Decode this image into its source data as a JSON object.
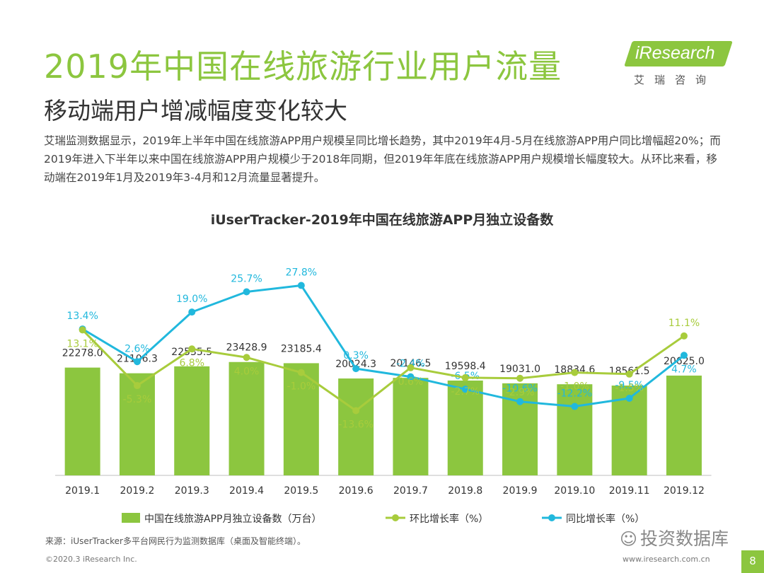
{
  "header": {
    "title": "2019年中国在线旅游行业用户流量",
    "subtitle": "移动端用户增减幅度变化较大"
  },
  "logo": {
    "text": "iResearch",
    "cn": "艾瑞咨询"
  },
  "description": "艾瑞监测数据显示，2019年上半年中国在线旅游APP用户规模呈同比增长趋势，其中2019年4月-5月在线旅游APP用户同比增幅超20%；而2019年进入下半年以来中国在线旅游APP用户规模少于2018年同期，但2019年年底在线旅游APP用户规模增长幅度较大。从环比来看，移动端在2019年1月及2019年3-4月和12月流量显著提升。",
  "chart_data": {
    "type": "bar",
    "title": "iUserTracker-2019年中国在线旅游APP月独立设备数",
    "categories": [
      "2019.1",
      "2019.2",
      "2019.3",
      "2019.4",
      "2019.5",
      "2019.6",
      "2019.7",
      "2019.8",
      "2019.9",
      "2019.10",
      "2019.11",
      "2019.12"
    ],
    "bar_labels": [
      "22278.0",
      "21106.3",
      "22535.5",
      "23428.9",
      "23185.4",
      "20024.3",
      "20146.5",
      "19598.4",
      "19031.0",
      "18834.6",
      "18561.5",
      "20625.0"
    ],
    "mom_labels": [
      "13.1%",
      "-5.3%",
      "6.8%",
      "4.0%",
      "-1.0%",
      "-13.6%",
      "0.6%",
      "-2.7%",
      "-2.9%",
      "-1.0%",
      "-1.5%",
      "11.1%"
    ],
    "yoy_labels": [
      "13.4%",
      "2.6%",
      "19.0%",
      "25.7%",
      "27.8%",
      "0.3%",
      "-2.4%",
      "-6.5%",
      "-10.6%",
      "-12.2%",
      "-9.5%",
      "4.7%"
    ],
    "series": [
      {
        "name": "中国在线旅游APP月独立设备数（万台）",
        "type": "bar",
        "color": "#8cc63f",
        "values": [
          22278.0,
          21106.3,
          22535.5,
          23428.9,
          23185.4,
          20024.3,
          20146.5,
          19598.4,
          19031.0,
          18834.6,
          18561.5,
          20625.0
        ]
      },
      {
        "name": "环比增长率（%）",
        "type": "line",
        "color": "#a8cc3c",
        "values": [
          13.1,
          -5.3,
          6.8,
          4.0,
          -1.0,
          -13.6,
          0.6,
          -2.7,
          -2.9,
          -1.0,
          -1.5,
          11.1
        ]
      },
      {
        "name": "同比增长率（%）",
        "type": "line",
        "color": "#21b8dd",
        "values": [
          13.4,
          2.6,
          19.0,
          25.7,
          27.8,
          0.3,
          -2.4,
          -6.5,
          -10.6,
          -12.2,
          -9.5,
          4.7
        ]
      }
    ],
    "bar_ylim": [
      0,
      50000
    ],
    "pct_ylim": [
      -35,
      45
    ]
  },
  "source": "来源：iUserTracker多平台网民行为监测数据库（桌面及智能终端）。",
  "watermark": "投资数据库",
  "footer": {
    "copyright": "©2020.3 iResearch Inc.",
    "url": "www.iresearch.com.cn",
    "page": "8"
  }
}
